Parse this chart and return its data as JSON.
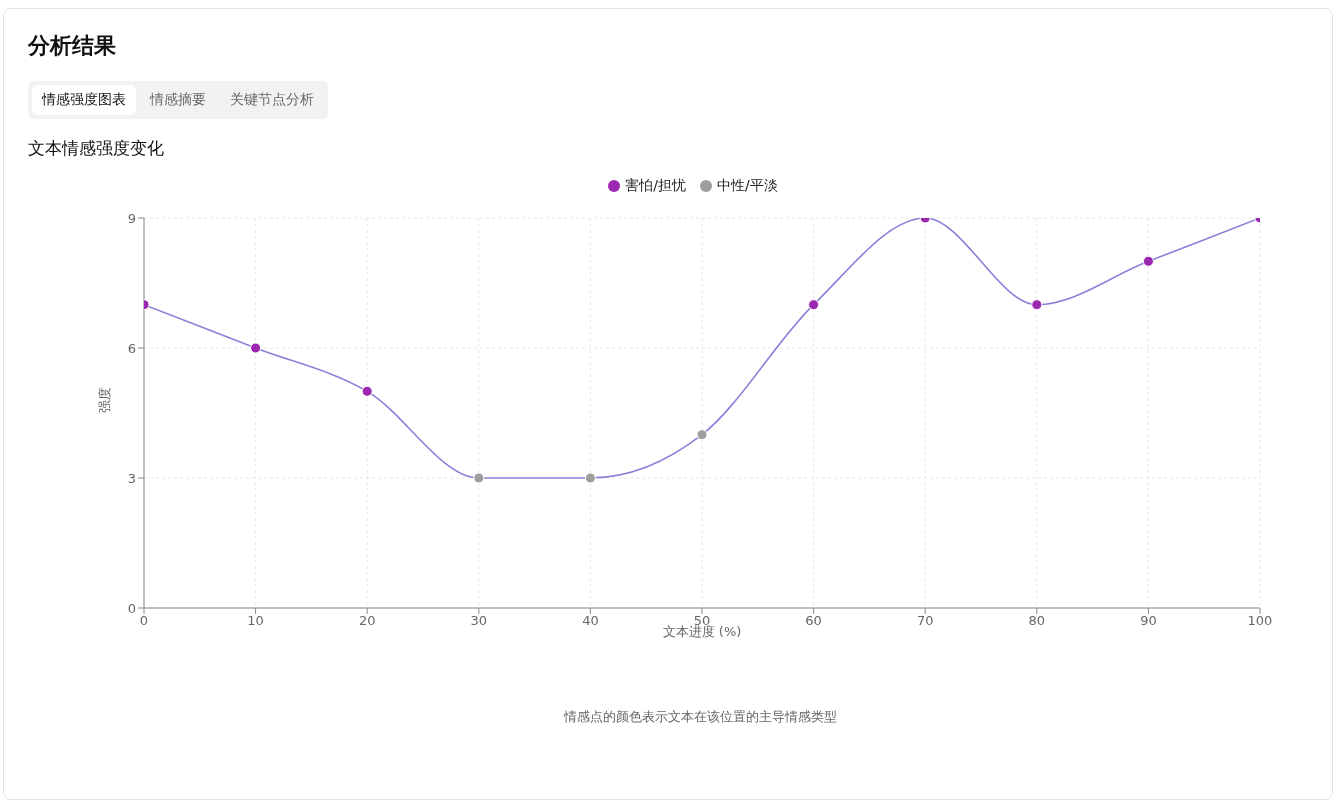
{
  "chart_data": {
    "type": "line",
    "title": "文本情感强度变化",
    "xlabel": "文本进度 (%)",
    "ylabel": "强度",
    "annotations": [
      "分析结果",
      "情感强度图表",
      "情感摘要",
      "关键节点分析",
      "情感点的颜色表示文本在该位置的主导情感类型"
    ],
    "x": [
      0,
      10,
      20,
      30,
      40,
      50,
      60,
      70,
      80,
      90,
      100
    ],
    "series": [
      {
        "color": "#8b80d9",
        "values": [
          7,
          6,
          5,
          3,
          3,
          4,
          7,
          9,
          7,
          8,
          9
        ],
        "marker": "none"
      },
      {
        "name": "害怕/担忧",
        "type": "scatter",
        "color": "#9c27b0",
        "x": [
          0,
          10,
          20,
          60,
          70,
          80,
          90,
          100
        ],
        "values": [
          7,
          6,
          5,
          7,
          9,
          7,
          8,
          9
        ]
      },
      {
        "name": "中性/平淡",
        "type": "scatter",
        "color": "#9e9e9e",
        "x": [
          30,
          40,
          50
        ],
        "values": [
          3,
          3,
          4
        ]
      }
    ],
    "xlim": [
      0,
      100
    ],
    "xticks": [
      0,
      10,
      20,
      30,
      40,
      50,
      60,
      70,
      80,
      90,
      100
    ],
    "ylim": [
      0,
      9
    ],
    "yticks": [
      0,
      3,
      6,
      9
    ],
    "grid": true,
    "legend": "top",
    "marker": "circle"
  }
}
